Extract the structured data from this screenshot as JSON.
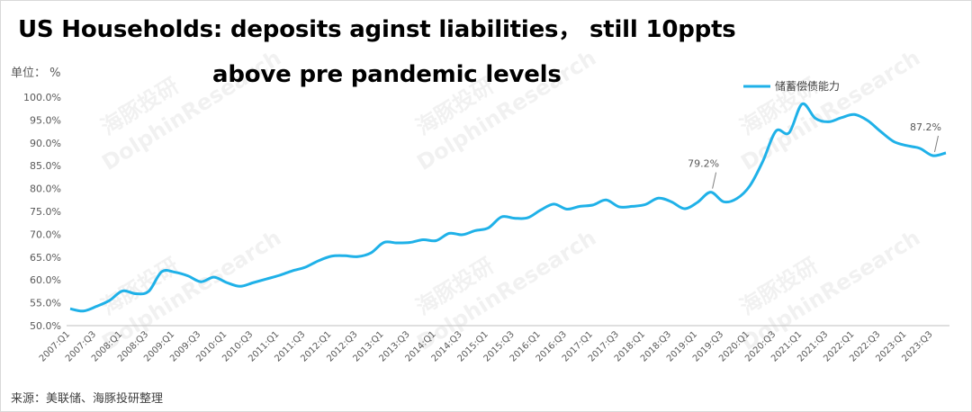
{
  "title_line1": "US Households: deposits aginst liabilities， still 10ppts",
  "title_line2": "above pre pandemic levels",
  "unit_label": "单位： %",
  "source": "来源：美联储、海豚投研整理",
  "watermark": [
    "海豚投研",
    "DolphinResearch"
  ],
  "line_color": "#1fb1e8",
  "chart_data": {
    "type": "line",
    "title": "US Households: deposits aginst liabilities， still 10ppts above pre pandemic levels",
    "xlabel": "",
    "ylabel": "单位： %",
    "ylim": [
      50,
      100
    ],
    "yticks": [
      "50.0%",
      "55.0%",
      "60.0%",
      "65.0%",
      "70.0%",
      "75.0%",
      "80.0%",
      "85.0%",
      "90.0%",
      "95.0%",
      "100.0%"
    ],
    "grid": false,
    "legend_position": "top-right",
    "x_tick_labels": [
      "2007:Q1",
      "2007:Q3",
      "2008:Q1",
      "2008:Q3",
      "2009:Q1",
      "2009:Q3",
      "2010:Q1",
      "2010:Q3",
      "2011:Q1",
      "2011:Q3",
      "2012:Q1",
      "2012:Q3",
      "2013:Q1",
      "2013:Q3",
      "2014:Q1",
      "2014:Q3",
      "2015:Q1",
      "2015:Q3",
      "2016:Q1",
      "2016:Q3",
      "2017:Q1",
      "2017:Q3",
      "2018:Q1",
      "2018:Q3",
      "2019:Q1",
      "2019:Q3",
      "2020:Q1",
      "2020:Q3",
      "2021:Q1",
      "2021:Q3",
      "2022:Q1",
      "2022:Q3",
      "2023:Q1",
      "2023:Q3"
    ],
    "x": [
      "2007:Q1",
      "2007:Q2",
      "2007:Q3",
      "2007:Q4",
      "2008:Q1",
      "2008:Q2",
      "2008:Q3",
      "2008:Q4",
      "2009:Q1",
      "2009:Q2",
      "2009:Q3",
      "2009:Q4",
      "2010:Q1",
      "2010:Q2",
      "2010:Q3",
      "2010:Q4",
      "2011:Q1",
      "2011:Q2",
      "2011:Q3",
      "2011:Q4",
      "2012:Q1",
      "2012:Q2",
      "2012:Q3",
      "2012:Q4",
      "2013:Q1",
      "2013:Q2",
      "2013:Q3",
      "2013:Q4",
      "2014:Q1",
      "2014:Q2",
      "2014:Q3",
      "2014:Q4",
      "2015:Q1",
      "2015:Q2",
      "2015:Q3",
      "2015:Q4",
      "2016:Q1",
      "2016:Q2",
      "2016:Q3",
      "2016:Q4",
      "2017:Q1",
      "2017:Q2",
      "2017:Q3",
      "2017:Q4",
      "2018:Q1",
      "2018:Q2",
      "2018:Q3",
      "2018:Q4",
      "2019:Q1",
      "2019:Q2",
      "2019:Q3",
      "2019:Q4",
      "2020:Q1",
      "2020:Q2",
      "2020:Q3",
      "2020:Q4",
      "2021:Q1",
      "2021:Q2",
      "2021:Q3",
      "2021:Q4",
      "2022:Q1",
      "2022:Q2",
      "2022:Q3",
      "2022:Q4",
      "2023:Q1",
      "2023:Q2",
      "2023:Q3",
      "2023:Q4"
    ],
    "series": [
      {
        "name": "储蓄偿债能力",
        "color": "#1fb1e8",
        "values": [
          53.7,
          53.2,
          54.2,
          55.5,
          57.6,
          57.0,
          57.5,
          61.8,
          61.7,
          60.9,
          59.6,
          60.6,
          59.4,
          58.6,
          59.4,
          60.2,
          61.0,
          62.0,
          62.8,
          64.2,
          65.2,
          65.3,
          65.1,
          65.9,
          68.2,
          68.1,
          68.2,
          68.8,
          68.6,
          70.2,
          69.9,
          70.8,
          71.4,
          73.8,
          73.5,
          73.6,
          75.3,
          76.6,
          75.5,
          76.1,
          76.4,
          77.5,
          76.0,
          76.1,
          76.5,
          77.9,
          77.1,
          75.6,
          77.0,
          79.2,
          77.1,
          77.8,
          80.6,
          86.0,
          92.6,
          92.2,
          98.5,
          95.4,
          94.6,
          95.5,
          96.2,
          94.9,
          92.5,
          90.3,
          89.4,
          88.8,
          87.2,
          87.8
        ]
      }
    ],
    "annotations": [
      {
        "x": "2019:Q2",
        "label": "79.2%"
      },
      {
        "x": "2023:Q3",
        "label": "87.2%"
      }
    ]
  }
}
